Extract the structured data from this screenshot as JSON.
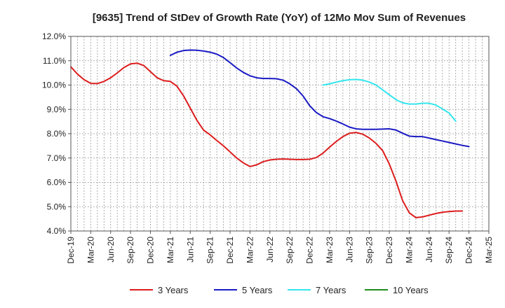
{
  "chart_data": {
    "type": "line",
    "title": "[9635]  Trend of StDev of Growth Rate (YoY) of 12Mo Mov Sum of Revenues",
    "xlabel": "",
    "ylabel": "",
    "ylim": [
      4.0,
      12.0
    ],
    "y_ticks": [
      "4.0%",
      "5.0%",
      "6.0%",
      "7.0%",
      "8.0%",
      "9.0%",
      "10.0%",
      "11.0%",
      "12.0%"
    ],
    "x_ticks": [
      "Dec-19",
      "Mar-20",
      "Jun-20",
      "Sep-20",
      "Dec-20",
      "Mar-21",
      "Jun-21",
      "Sep-21",
      "Dec-21",
      "Mar-22",
      "Jun-22",
      "Sep-22",
      "Dec-22",
      "Mar-23",
      "Jun-23",
      "Sep-23",
      "Dec-23",
      "Mar-24",
      "Jun-24",
      "Sep-24",
      "Dec-24",
      "Mar-25"
    ],
    "x_start": "Dec-19",
    "grid": true,
    "legend_position": "bottom",
    "colors": {
      "3y": "#dd1c1c",
      "5y": "#1a1ac4",
      "7y": "#33e6ee",
      "10y": "#1f8c1f"
    },
    "series": [
      {
        "key": "3y",
        "name": "3 Years",
        "start_index": 0,
        "values": [
          10.75,
          10.45,
          10.22,
          10.07,
          10.06,
          10.15,
          10.3,
          10.5,
          10.72,
          10.87,
          10.9,
          10.8,
          10.55,
          10.3,
          10.18,
          10.15,
          9.95,
          9.55,
          9.05,
          8.55,
          8.15,
          7.95,
          7.72,
          7.5,
          7.25,
          7.0,
          6.8,
          6.65,
          6.72,
          6.85,
          6.92,
          6.95,
          6.96,
          6.95,
          6.94,
          6.94,
          6.95,
          7.02,
          7.2,
          7.45,
          7.68,
          7.88,
          8.02,
          8.05,
          7.98,
          7.82,
          7.6,
          7.3,
          6.75,
          6.05,
          5.25,
          4.75,
          4.55,
          4.58,
          4.65,
          4.72,
          4.77,
          4.8,
          4.82,
          4.82
        ]
      },
      {
        "key": "5y",
        "name": "5 Years",
        "start_index": 15,
        "values": [
          11.22,
          11.35,
          11.42,
          11.44,
          11.43,
          11.4,
          11.35,
          11.27,
          11.13,
          10.92,
          10.7,
          10.52,
          10.38,
          10.3,
          10.27,
          10.27,
          10.26,
          10.2,
          10.05,
          9.85,
          9.55,
          9.15,
          8.87,
          8.7,
          8.62,
          8.52,
          8.4,
          8.27,
          8.2,
          8.18,
          8.18,
          8.18,
          8.19,
          8.2,
          8.15,
          8.02,
          7.9,
          7.88,
          7.88,
          7.82,
          7.76,
          7.7,
          7.64,
          7.58,
          7.52,
          7.47
        ]
      },
      {
        "key": "7y",
        "name": "7 Years",
        "start_index": 38,
        "values": [
          10.0,
          10.05,
          10.12,
          10.18,
          10.22,
          10.23,
          10.2,
          10.12,
          10.0,
          9.8,
          9.6,
          9.4,
          9.27,
          9.22,
          9.22,
          9.25,
          9.25,
          9.18,
          9.02,
          8.85,
          8.52
        ]
      },
      {
        "key": "10y",
        "name": "10 Years",
        "start_index": 0,
        "values": []
      }
    ]
  }
}
